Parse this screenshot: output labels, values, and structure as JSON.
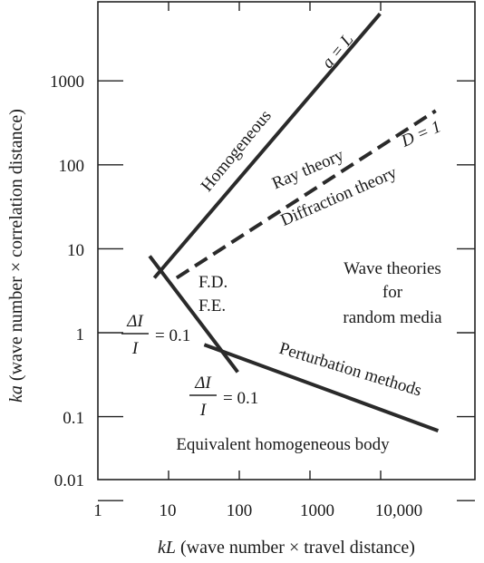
{
  "chart_data": {
    "type": "line",
    "xlabel": "kL (wave number × travel distance)",
    "ylabel": "ka (wave number × correlation distance)",
    "xscale": "log",
    "yscale": "log",
    "xlim": [
      1,
      70000
    ],
    "ylim": [
      0.01,
      8000
    ],
    "x_ticks": [
      {
        "value": 1,
        "label": "1"
      },
      {
        "value": 10,
        "label": "10"
      },
      {
        "value": 100,
        "label": "100"
      },
      {
        "value": 1000,
        "label": "1000"
      },
      {
        "value": 10000,
        "label": "10,000"
      }
    ],
    "y_ticks": [
      {
        "value": 0.01,
        "label": "0.01"
      },
      {
        "value": 0.1,
        "label": "0.1"
      },
      {
        "value": 1,
        "label": "1"
      },
      {
        "value": 10,
        "label": "10"
      },
      {
        "value": 100,
        "label": "100"
      },
      {
        "value": 1000,
        "label": "1000"
      }
    ],
    "grid": false,
    "lines": [
      {
        "id": "a-equals-L",
        "label": "a = L",
        "style": "solid",
        "points": [
          [
            6.3,
            4.5
          ],
          [
            9800,
            6300
          ]
        ]
      },
      {
        "id": "D-equals-1",
        "label": "D = 1",
        "style": "dashed",
        "points": [
          [
            13,
            4.5
          ],
          [
            60000,
            440
          ]
        ]
      },
      {
        "id": "delta-I-left",
        "label": "",
        "style": "solid",
        "points": [
          [
            5.4,
            8.2
          ],
          [
            95,
            0.34
          ]
        ]
      },
      {
        "id": "delta-I-right",
        "label": "",
        "style": "solid",
        "points": [
          [
            32,
            0.72
          ],
          [
            65000,
            0.068
          ]
        ]
      }
    ],
    "region_labels": {
      "homogeneous": "Homogeneous",
      "ray_theory": "Ray theory",
      "diffraction_theory": "Diffraction theory",
      "fd": "F.D.",
      "fe": "F.E.",
      "wave_theories_1": "Wave theories",
      "wave_theories_2": "for",
      "wave_theories_3": "random media",
      "perturbation": "Perturbation methods",
      "equivalent_body": "Equivalent homogeneous body"
    },
    "line_labels": {
      "a_eq_L": "a = L",
      "D_eq_1": "D = 1"
    },
    "fraction_labels": {
      "left": {
        "numerator": "ΔI",
        "denominator": "I",
        "rhs": "= 0.1"
      },
      "bottom": {
        "numerator": "ΔI",
        "denominator": "I",
        "rhs": "= 0.1"
      }
    }
  }
}
